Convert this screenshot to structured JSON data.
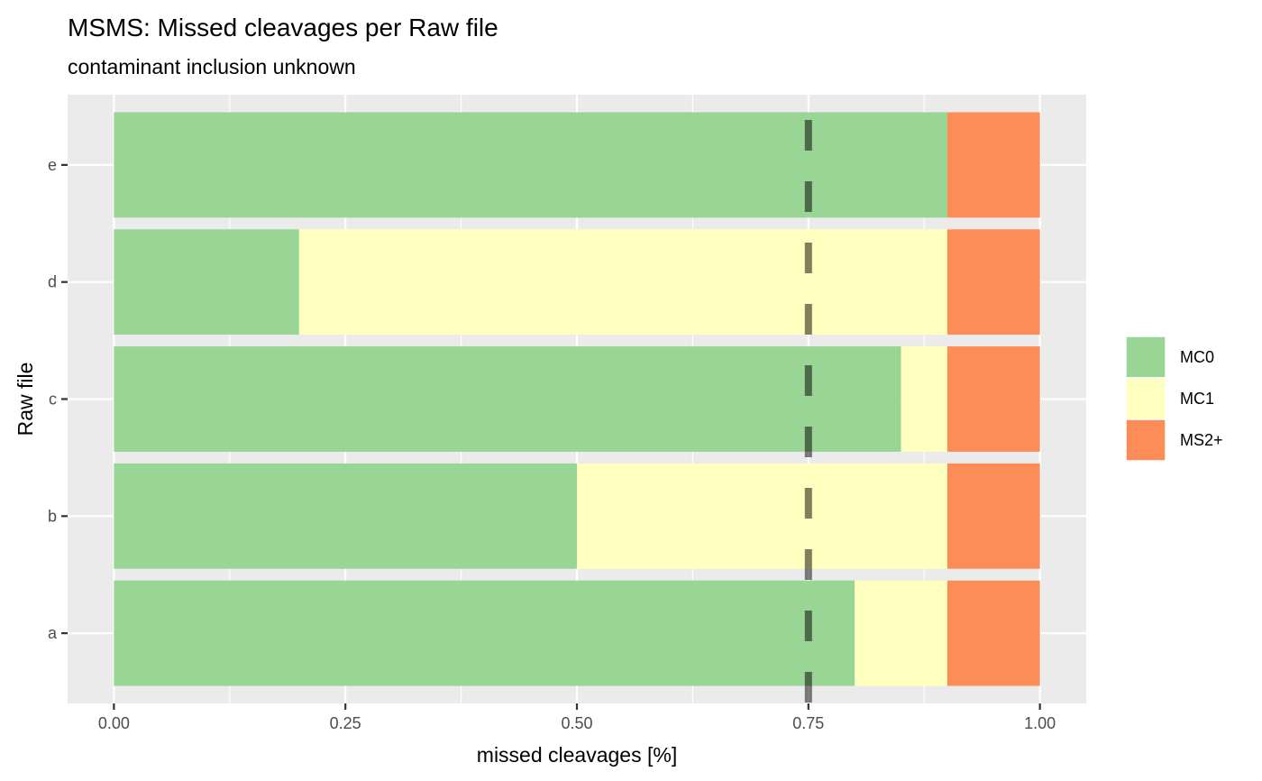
{
  "chart_data": {
    "type": "bar",
    "orientation": "horizontal",
    "stacked": true,
    "title": "MSMS: Missed cleavages per Raw file",
    "subtitle": "contaminant inclusion unknown",
    "xlabel": "missed cleavages [%]",
    "ylabel": "Raw file",
    "categories": [
      "a",
      "b",
      "c",
      "d",
      "e"
    ],
    "xlim": [
      0,
      1
    ],
    "x_ticks": [
      0,
      0.25,
      0.5,
      0.75,
      1
    ],
    "x_tick_labels": [
      "0.00",
      "0.25",
      "0.50",
      "0.75",
      "1.00"
    ],
    "series": [
      {
        "name": "MC0",
        "color": "#99D594",
        "values": [
          0.8,
          0.5,
          0.85,
          0.2,
          0.9
        ]
      },
      {
        "name": "MC1",
        "color": "#FFFFBF",
        "values": [
          0.1,
          0.4,
          0.05,
          0.7,
          0.0
        ]
      },
      {
        "name": "MS2+",
        "color": "#FC8D59",
        "values": [
          0.1,
          0.1,
          0.1,
          0.1,
          0.1
        ]
      }
    ],
    "reference_line": {
      "x": 0.75,
      "style": "dashed",
      "color": "#000000",
      "opacity": 0.5
    },
    "legend_position": "right",
    "grid": true,
    "panel_background": "#EBEBEB",
    "grid_color": "#FFFFFF"
  }
}
